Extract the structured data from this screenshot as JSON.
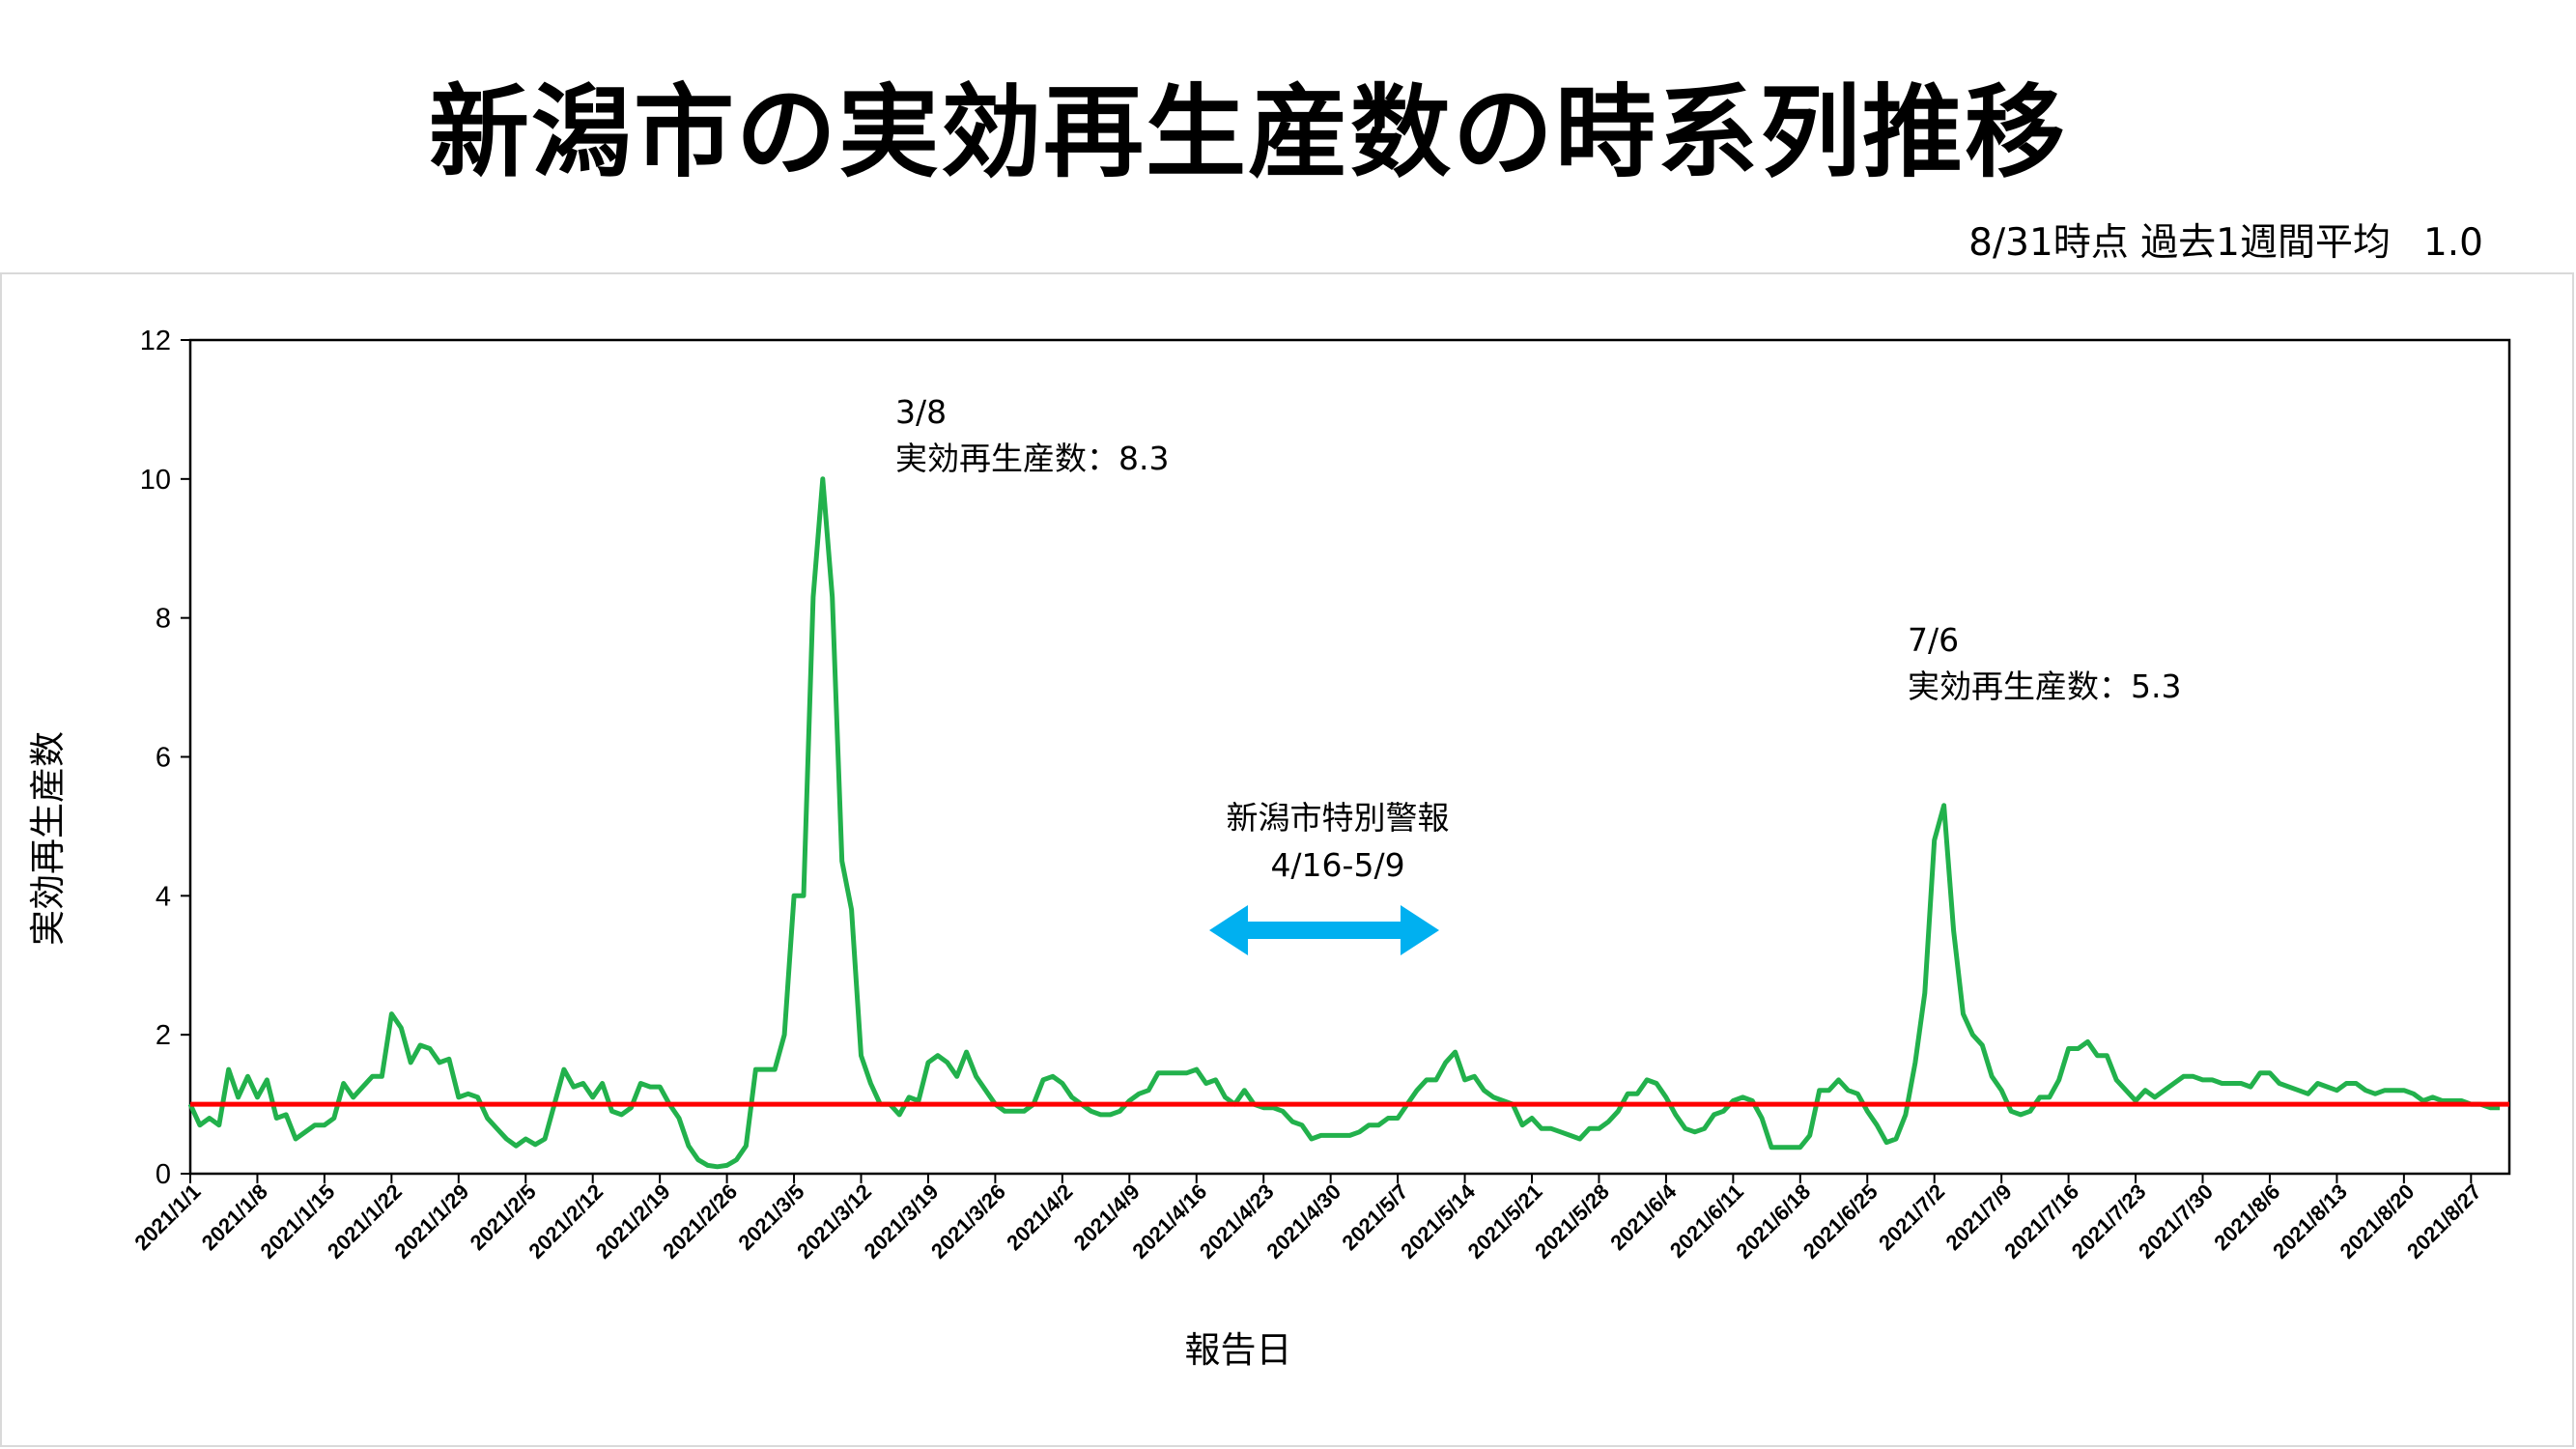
{
  "header": {
    "title": "新潟市の実効再生産数の時系列推移",
    "subtitle_label": "8/31時点 過去1週間平均",
    "subtitle_value": "1.0"
  },
  "chart_data": {
    "type": "line",
    "xlabel": "報告日",
    "ylabel": "実効再生産数",
    "ylim": [
      0,
      12
    ],
    "yticks": [
      0,
      2,
      4,
      6,
      8,
      10,
      12
    ],
    "x_start": "2021-01-01",
    "x_end": "2021-08-31",
    "x_tick_labels": [
      "2021/1/1",
      "2021/1/8",
      "2021/1/15",
      "2021/1/22",
      "2021/1/29",
      "2021/2/5",
      "2021/2/12",
      "2021/2/19",
      "2021/2/26",
      "2021/3/5",
      "2021/3/12",
      "2021/3/19",
      "2021/3/26",
      "2021/4/2",
      "2021/4/9",
      "2021/4/16",
      "2021/4/23",
      "2021/4/30",
      "2021/5/7",
      "2021/5/14",
      "2021/5/21",
      "2021/5/28",
      "2021/6/4",
      "2021/6/11",
      "2021/6/18",
      "2021/6/25",
      "2021/7/2",
      "2021/7/9",
      "2021/7/16",
      "2021/7/23",
      "2021/7/30",
      "2021/8/6",
      "2021/8/13",
      "2021/8/20",
      "2021/8/27"
    ],
    "grid": false,
    "series": [
      {
        "color": "#22b14c",
        "values": [
          1.0,
          0.7,
          0.8,
          0.7,
          1.5,
          1.1,
          1.4,
          1.1,
          1.35,
          0.8,
          0.85,
          0.5,
          0.6,
          0.7,
          0.7,
          0.8,
          1.3,
          1.1,
          1.25,
          1.4,
          1.4,
          2.3,
          2.1,
          1.6,
          1.85,
          1.8,
          1.6,
          1.65,
          1.1,
          1.15,
          1.1,
          0.8,
          0.65,
          0.5,
          0.4,
          0.5,
          0.42,
          0.5,
          1.0,
          1.5,
          1.25,
          1.3,
          1.1,
          1.3,
          0.9,
          0.85,
          0.95,
          1.3,
          1.25,
          1.25,
          1.0,
          0.8,
          0.4,
          0.2,
          0.12,
          0.1,
          0.12,
          0.2,
          0.4,
          1.5,
          1.5,
          1.5,
          2.0,
          4.0,
          4.0,
          8.3,
          10.0,
          8.3,
          4.5,
          3.8,
          1.7,
          1.3,
          1.0,
          1.0,
          0.85,
          1.1,
          1.05,
          1.6,
          1.7,
          1.6,
          1.4,
          1.75,
          1.4,
          1.2,
          1.0,
          0.9,
          0.9,
          0.9,
          1.0,
          1.35,
          1.4,
          1.3,
          1.1,
          1.0,
          0.9,
          0.85,
          0.85,
          0.9,
          1.05,
          1.15,
          1.2,
          1.45,
          1.45,
          1.45,
          1.45,
          1.5,
          1.3,
          1.35,
          1.1,
          1.0,
          1.2,
          1.0,
          0.95,
          0.95,
          0.9,
          0.75,
          0.7,
          0.5,
          0.55,
          0.55,
          0.55,
          0.55,
          0.6,
          0.7,
          0.7,
          0.8,
          0.8,
          1.0,
          1.2,
          1.35,
          1.35,
          1.6,
          1.75,
          1.35,
          1.4,
          1.2,
          1.1,
          1.05,
          1.0,
          0.7,
          0.8,
          0.65,
          0.65,
          0.6,
          0.55,
          0.5,
          0.65,
          0.65,
          0.75,
          0.9,
          1.15,
          1.15,
          1.35,
          1.3,
          1.1,
          0.85,
          0.65,
          0.6,
          0.65,
          0.85,
          0.9,
          1.05,
          1.1,
          1.05,
          0.8,
          0.38,
          0.38,
          0.38,
          0.38,
          0.55,
          1.2,
          1.2,
          1.35,
          1.2,
          1.15,
          0.9,
          0.7,
          0.45,
          0.5,
          0.85,
          1.6,
          2.6,
          4.8,
          5.3,
          3.5,
          2.3,
          2.0,
          1.85,
          1.4,
          1.2,
          0.9,
          0.85,
          0.9,
          1.1,
          1.1,
          1.35,
          1.8,
          1.8,
          1.9,
          1.7,
          1.7,
          1.35,
          1.2,
          1.05,
          1.2,
          1.1,
          1.2,
          1.3,
          1.4,
          1.4,
          1.35,
          1.35,
          1.3,
          1.3,
          1.3,
          1.25,
          1.45,
          1.45,
          1.3,
          1.25,
          1.2,
          1.15,
          1.3,
          1.25,
          1.2,
          1.3,
          1.3,
          1.2,
          1.15,
          1.2,
          1.2,
          1.2,
          1.15,
          1.05,
          1.1,
          1.05,
          1.05,
          1.05,
          1.0,
          1.0,
          0.95,
          0.95
        ]
      }
    ],
    "reference_line": {
      "value": 1.0,
      "color": "#ff0000"
    },
    "annotations": [
      {
        "date_label": "3/8",
        "text": "実効再生産数：8.3"
      },
      {
        "date_label": "7/6",
        "text": "実効再生産数：5.3"
      }
    ],
    "period_label": {
      "title": "新潟市特別警報",
      "range": "4/16-5/9",
      "arrow_color": "#00b0f0"
    }
  }
}
